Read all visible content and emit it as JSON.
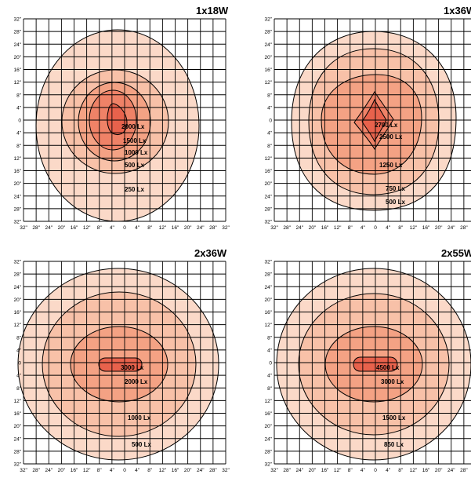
{
  "ticks": {
    "y": [
      "32\"",
      "28\"",
      "24\"",
      "20\"",
      "16\"",
      "12\"",
      "8\"",
      "4\"",
      "0",
      "4\"",
      "8\"",
      "12\"",
      "16\"",
      "20\"",
      "24\"",
      "28\"",
      "32\""
    ],
    "x": [
      "32\"",
      "28\"",
      "24\"",
      "20\"",
      "16\"",
      "12\"",
      "8\"",
      "4\"",
      "0",
      "4\"",
      "8\"",
      "12\"",
      "16\"",
      "20\"",
      "24\"",
      "28\"",
      "32\""
    ]
  },
  "colors": {
    "levels": [
      "#fbd9c8",
      "#f8c1a8",
      "#f4a284",
      "#ef8267",
      "#e8624c",
      "#de4538"
    ],
    "grid": "#000000"
  },
  "panels": [
    {
      "title": "1x18W",
      "labels": [
        "2000 Lx",
        "1500 Lx",
        "1000 Lx",
        "500 Lx",
        "250 Lx"
      ]
    },
    {
      "title": "1x36W",
      "labels": [
        "2700 Lx",
        "2500 Lx",
        "1250 Lx",
        "750 Lx",
        "500 Lx"
      ]
    },
    {
      "title": "2x36W",
      "labels": [
        "3000 Lx",
        "2000 Lx",
        "1000 Lx",
        "500 Lx"
      ]
    },
    {
      "title": "2x55W",
      "labels": [
        "4500 Lx",
        "3000 Lx",
        "1500 Lx",
        "850 Lx"
      ]
    }
  ]
}
